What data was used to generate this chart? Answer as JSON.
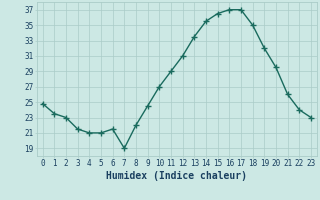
{
  "x": [
    0,
    1,
    2,
    3,
    4,
    5,
    6,
    7,
    8,
    9,
    10,
    11,
    12,
    13,
    14,
    15,
    16,
    17,
    18,
    19,
    20,
    21,
    22,
    23
  ],
  "y": [
    24.8,
    23.5,
    23.0,
    21.5,
    21.0,
    21.0,
    21.5,
    19.0,
    22.0,
    24.5,
    27.0,
    29.0,
    31.0,
    33.5,
    35.5,
    36.5,
    37.0,
    37.0,
    35.0,
    32.0,
    29.5,
    26.0,
    24.0,
    23.0
  ],
  "xlabel": "Humidex (Indice chaleur)",
  "xlim": [
    -0.5,
    23.5
  ],
  "ylim": [
    18,
    38
  ],
  "yticks": [
    19,
    21,
    23,
    25,
    27,
    29,
    31,
    33,
    35,
    37
  ],
  "xticks": [
    0,
    1,
    2,
    3,
    4,
    5,
    6,
    7,
    8,
    9,
    10,
    11,
    12,
    13,
    14,
    15,
    16,
    17,
    18,
    19,
    20,
    21,
    22,
    23
  ],
  "line_color": "#1a6b5e",
  "marker": "+",
  "bg_color": "#cce8e4",
  "grid_color": "#aaccc8",
  "label_color": "#1a4060",
  "tick_label_size": 5.5,
  "xlabel_size": 7.0,
  "marker_size": 4,
  "marker_edge_width": 1.0,
  "line_width": 1.0
}
